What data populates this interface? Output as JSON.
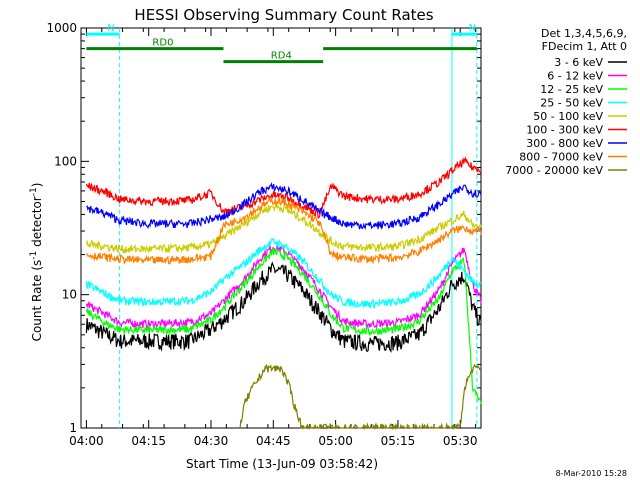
{
  "chart_data": {
    "type": "line",
    "title": "HESSI Observing Summary Count Rates",
    "xlabel": "Start Time (13-Jun-09 03:58:42)",
    "ylabel": "Count Rate (s^-1 detector^-1)",
    "ylabel_parts": {
      "main": "Count Rate (s",
      "exp1": "-1",
      "mid": " detector",
      "exp2": "-1",
      "end": ")"
    },
    "yscale": "log",
    "ylim": [
      1,
      1000
    ],
    "xlim": [
      "03:58:42",
      "05:35:00"
    ],
    "x_tick_labels": [
      "04:00",
      "04:15",
      "04:30",
      "04:45",
      "05:00",
      "05:15",
      "05:30"
    ],
    "y_tick_labels": [
      "1",
      "10",
      "100",
      "1000"
    ],
    "legend_header": [
      "Det 1,3,4,5,6,9,",
      "FDecim 1, Att 0"
    ],
    "legend_placement": "right, outside",
    "series": [
      {
        "name": "3 - 6 keV",
        "color": "#000000",
        "x": [
          "04:00",
          "04:05",
          "04:08",
          "04:15",
          "04:25",
          "04:30",
          "04:33",
          "04:38",
          "04:42",
          "04:45",
          "04:48",
          "04:52",
          "04:56",
          "04:59",
          "05:02",
          "05:08",
          "05:15",
          "05:20",
          "05:25",
          "05:28",
          "05:31",
          "05:33",
          "05:35"
        ],
        "y": [
          6,
          5,
          4.5,
          4.5,
          4.5,
          5.5,
          6.5,
          9,
          13,
          15.5,
          14.5,
          11,
          7.5,
          5.5,
          4.5,
          4.3,
          4.4,
          5,
          8,
          12,
          14,
          8,
          6
        ]
      },
      {
        "name": "6 - 12 keV",
        "color": "#ff00ff",
        "x": [
          "04:00",
          "04:05",
          "04:08",
          "04:15",
          "04:25",
          "04:30",
          "04:33",
          "04:38",
          "04:42",
          "04:45",
          "04:48",
          "04:52",
          "04:56",
          "04:59",
          "05:02",
          "05:08",
          "05:15",
          "05:20",
          "05:25",
          "05:28",
          "05:31",
          "05:33",
          "05:35"
        ],
        "y": [
          8.5,
          7,
          6.2,
          6,
          6.2,
          7.2,
          9,
          13,
          19,
          23,
          21,
          16,
          11,
          8,
          6.3,
          6,
          6.2,
          7,
          11,
          17,
          22,
          12,
          9
        ]
      },
      {
        "name": "12 - 25 keV",
        "color": "#00ff00",
        "x": [
          "04:00",
          "04:05",
          "04:08",
          "04:15",
          "04:25",
          "04:30",
          "04:33",
          "04:38",
          "04:42",
          "04:45",
          "04:48",
          "04:52",
          "04:56",
          "04:59",
          "05:02",
          "05:08",
          "05:15",
          "05:20",
          "05:25",
          "05:28",
          "05:31",
          "05:33",
          "05:35"
        ],
        "y": [
          7.5,
          6,
          5.5,
          5.4,
          5.5,
          6.5,
          8,
          12,
          17,
          21,
          19.5,
          14.5,
          10,
          7,
          5.6,
          5.3,
          5.5,
          6.3,
          9.5,
          15,
          18,
          2,
          1.5
        ]
      },
      {
        "name": "25 - 50 keV",
        "color": "#00ffff",
        "x": [
          "04:00",
          "04:05",
          "04:08",
          "04:15",
          "04:25",
          "04:30",
          "04:33",
          "04:38",
          "04:42",
          "04:45",
          "04:48",
          "04:52",
          "04:56",
          "04:59",
          "05:02",
          "05:08",
          "05:15",
          "05:20",
          "05:25",
          "05:28",
          "05:31",
          "05:33",
          "05:35"
        ],
        "y": [
          12,
          10,
          9,
          8.8,
          9,
          10.5,
          13,
          17,
          22,
          25,
          23,
          18,
          13,
          10,
          8.8,
          8.5,
          8.8,
          10,
          14,
          19,
          15,
          12.5,
          12
        ]
      },
      {
        "name": "50 - 100 keV",
        "color": "#cccc00",
        "x": [
          "04:00",
          "04:05",
          "04:08",
          "04:15",
          "04:25",
          "04:30",
          "04:33",
          "04:38",
          "04:42",
          "04:45",
          "04:48",
          "04:52",
          "04:56",
          "04:59",
          "05:02",
          "05:08",
          "05:15",
          "05:20",
          "05:25",
          "05:28",
          "05:31",
          "05:33",
          "05:35"
        ],
        "y": [
          24,
          23,
          22,
          22,
          22.5,
          24,
          27,
          34,
          42,
          46,
          44,
          37,
          30,
          25,
          23,
          22.5,
          23,
          26,
          32,
          36,
          40,
          33,
          32
        ]
      },
      {
        "name": "100 - 300 keV",
        "color": "#ff0000",
        "x": [
          "04:00",
          "04:05",
          "04:08",
          "04:15",
          "04:25",
          "04:30",
          "04:33",
          "04:38",
          "04:42",
          "04:45",
          "04:48",
          "04:52",
          "04:56",
          "04:59",
          "05:02",
          "05:08",
          "05:15",
          "05:20",
          "05:25",
          "05:28",
          "05:31",
          "05:33",
          "05:35"
        ],
        "y": [
          66,
          58,
          52,
          50,
          51,
          58,
          42,
          46,
          52,
          56,
          54,
          47,
          40,
          65,
          55,
          52,
          52,
          57,
          70,
          85,
          100,
          90,
          88
        ]
      },
      {
        "name": "300 - 800 keV",
        "color": "#0000ff",
        "x": [
          "04:00",
          "04:05",
          "04:08",
          "04:15",
          "04:25",
          "04:30",
          "04:33",
          "04:38",
          "04:42",
          "04:45",
          "04:48",
          "04:52",
          "04:56",
          "04:59",
          "05:02",
          "05:08",
          "05:15",
          "05:20",
          "05:25",
          "05:28",
          "05:31",
          "05:33",
          "05:35"
        ],
        "y": [
          45,
          40,
          36,
          34,
          34,
          37,
          38,
          48,
          60,
          64,
          61,
          52,
          42,
          38,
          34,
          33,
          34,
          38,
          48,
          56,
          65,
          58,
          57
        ]
      },
      {
        "name": "800 - 7000 keV",
        "color": "#ff8000",
        "x": [
          "04:00",
          "04:05",
          "04:08",
          "04:15",
          "04:25",
          "04:30",
          "04:33",
          "04:38",
          "04:42",
          "04:45",
          "04:48",
          "04:52",
          "04:56",
          "04:59",
          "05:02",
          "05:08",
          "05:15",
          "05:20",
          "05:25",
          "05:28",
          "05:31",
          "05:33",
          "05:35"
        ],
        "y": [
          20,
          19,
          18.5,
          18,
          18.5,
          19.5,
          33,
          38,
          46,
          51,
          49,
          42,
          35,
          20,
          19,
          18.5,
          19,
          21,
          26,
          30,
          32,
          30,
          30
        ]
      },
      {
        "name": "7000 - 20000 keV",
        "color": "#808000",
        "x": [
          "04:37",
          "04:38",
          "04:40",
          "04:43",
          "04:47",
          "04:49",
          "04:50",
          "04:52",
          "05:30",
          "05:31",
          "05:33",
          "05:35"
        ],
        "y": [
          1,
          1.5,
          2,
          2.8,
          2.8,
          2,
          1.5,
          1,
          1,
          2,
          2.8,
          2.8
        ]
      }
    ],
    "annotations": [
      {
        "text": "N",
        "color": "#00ffff",
        "x": [
          "04:00",
          "04:08"
        ],
        "y": 900
      },
      {
        "text": "N",
        "color": "#00ffff",
        "x": [
          "05:28",
          "05:34"
        ],
        "y": 900
      },
      {
        "text": "RD0",
        "color": "#008000",
        "x": [
          "04:00",
          "04:33"
        ],
        "y": 700
      },
      {
        "text": "RD4",
        "color": "#008000",
        "x": [
          "04:33",
          "04:57"
        ],
        "y": 560
      },
      {
        "text": "",
        "color": "#008000",
        "x": [
          "04:57",
          "05:34"
        ],
        "y": 700
      }
    ],
    "vertical_markers": [
      {
        "x": "04:08",
        "color": "#00ffff",
        "style": "dashed"
      },
      {
        "x": "05:28",
        "color": "#00ffff",
        "style": "solid"
      },
      {
        "x": "05:34",
        "color": "#00ffff",
        "style": "dashed"
      }
    ]
  },
  "footer_stamp": "8-Mar-2010 15:28"
}
